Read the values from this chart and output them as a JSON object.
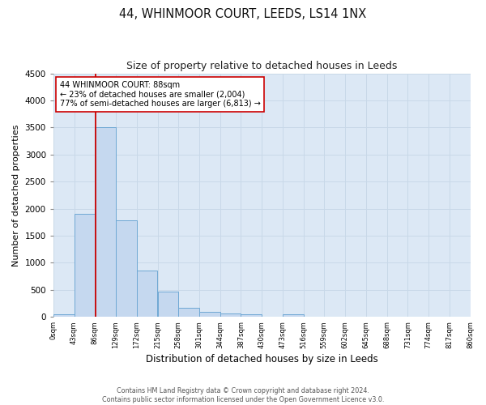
{
  "title": "44, WHINMOOR COURT, LEEDS, LS14 1NX",
  "subtitle": "Size of property relative to detached houses in Leeds",
  "xlabel": "Distribution of detached houses by size in Leeds",
  "ylabel": "Number of detached properties",
  "bar_edges": [
    0,
    43,
    86,
    129,
    172,
    215,
    258,
    301,
    344,
    387,
    430,
    473,
    516,
    559,
    602,
    645,
    688,
    731,
    774,
    817,
    860
  ],
  "bar_heights": [
    50,
    1900,
    3500,
    1780,
    860,
    460,
    175,
    95,
    60,
    45,
    0,
    45,
    0,
    0,
    0,
    0,
    0,
    0,
    0,
    0
  ],
  "bar_color": "#c5d8ef",
  "bar_edge_color": "#6fa8d4",
  "grid_color": "#c8d8e8",
  "plot_bg_color": "#dce8f5",
  "fig_bg_color": "#ffffff",
  "property_line_x": 88,
  "property_line_color": "#cc0000",
  "annotation_line1": "44 WHINMOOR COURT: 88sqm",
  "annotation_line2": "← 23% of detached houses are smaller (2,004)",
  "annotation_line3": "77% of semi-detached houses are larger (6,813) →",
  "annotation_box_color": "#ffffff",
  "annotation_box_edge": "#cc0000",
  "ylim": [
    0,
    4500
  ],
  "yticks": [
    0,
    500,
    1000,
    1500,
    2000,
    2500,
    3000,
    3500,
    4000,
    4500
  ],
  "xtick_labels": [
    "0sqm",
    "43sqm",
    "86sqm",
    "129sqm",
    "172sqm",
    "215sqm",
    "258sqm",
    "301sqm",
    "344sqm",
    "387sqm",
    "430sqm",
    "473sqm",
    "516sqm",
    "559sqm",
    "602sqm",
    "645sqm",
    "688sqm",
    "731sqm",
    "774sqm",
    "817sqm",
    "860sqm"
  ],
  "footer_line1": "Contains HM Land Registry data © Crown copyright and database right 2024.",
  "footer_line2": "Contains public sector information licensed under the Open Government Licence v3.0."
}
